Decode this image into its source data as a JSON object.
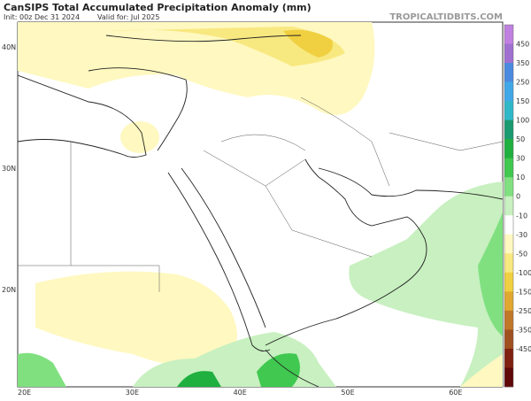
{
  "header": {
    "title": "CanSIPS Total Accumulated Precipitation Anomaly (mm)",
    "init": "Init: 00z Dec 31 2024",
    "valid": "Valid for: Jul 2025",
    "watermark": "TROPICALTIDBITS.COM"
  },
  "lon_labels": [
    "20E",
    "30E",
    "40E",
    "50E",
    "60E"
  ],
  "lat_labels": [
    "40N",
    "30N",
    "20N"
  ],
  "colorbar": {
    "labels": [
      "450",
      "350",
      "250",
      "150",
      "100",
      "50",
      "30",
      "10",
      "0",
      "-10",
      "-30",
      "-50",
      "-100",
      "-150",
      "-250",
      "-350",
      "-450"
    ],
    "colors": [
      "#c080e0",
      "#a070d0",
      "#4a8ae0",
      "#40a8e8",
      "#2fb8c8",
      "#1a9a70",
      "#20b040",
      "#40c850",
      "#80e080",
      "#c8f0c0",
      "#ffffff",
      "#fff8c0",
      "#f8e880",
      "#f0d040",
      "#e0a830",
      "#c07828",
      "#a05020",
      "#802010",
      "#600808"
    ]
  }
}
